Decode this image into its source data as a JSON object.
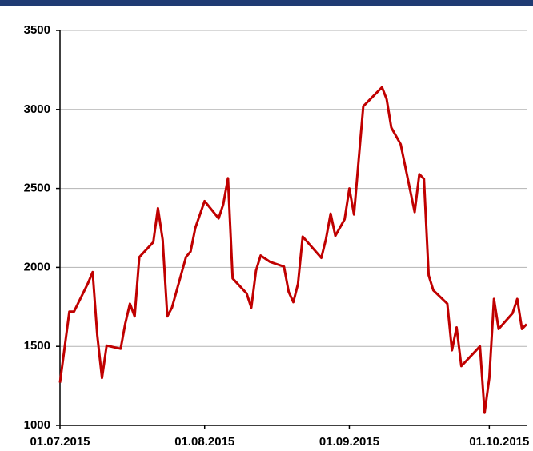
{
  "chart_data": {
    "type": "line",
    "x": [
      "01.07.2015",
      "03.07.2015",
      "04.07.2015",
      "07.07.2015",
      "08.07.2015",
      "09.07.2015",
      "10.07.2015",
      "11.07.2015",
      "14.07.2015",
      "15.07.2015",
      "16.07.2015",
      "17.07.2015",
      "18.07.2015",
      "21.07.2015",
      "22.07.2015",
      "23.07.2015",
      "24.07.2015",
      "25.07.2015",
      "28.07.2015",
      "29.07.2015",
      "30.07.2015",
      "01.08.2015",
      "04.08.2015",
      "05.08.2015",
      "06.08.2015",
      "07.08.2015",
      "10.08.2015",
      "11.08.2015",
      "12.08.2015",
      "13.08.2015",
      "15.08.2015",
      "18.08.2015",
      "19.08.2015",
      "20.08.2015",
      "21.08.2015",
      "22.08.2015",
      "26.08.2015",
      "27.08.2015",
      "28.08.2015",
      "29.08.2015",
      "31.08.2015",
      "01.09.2015",
      "02.09.2015",
      "03.09.2015",
      "04.09.2015",
      "08.09.2015",
      "09.09.2015",
      "10.09.2015",
      "12.09.2015",
      "15.09.2015",
      "16.09.2015",
      "17.09.2015",
      "18.09.2015",
      "19.09.2015",
      "22.09.2015",
      "23.09.2015",
      "24.09.2015",
      "25.09.2015",
      "29.09.2015",
      "30.09.2015",
      "01.10.2015",
      "02.10.2015",
      "03.10.2015",
      "06.10.2015",
      "07.10.2015",
      "08.10.2015",
      "09.10.2015"
    ],
    "series": [
      {
        "color": "#c00000",
        "values": [
          1270,
          1720,
          1720,
          1900,
          1970,
          1570,
          1300,
          1505,
          1485,
          1645,
          1770,
          1690,
          2065,
          2160,
          2375,
          2175,
          1690,
          1745,
          2065,
          2100,
          2250,
          2420,
          2310,
          2400,
          2565,
          1930,
          1835,
          1745,
          1980,
          2075,
          2035,
          2005,
          1845,
          1780,
          1895,
          2195,
          2060,
          2180,
          2340,
          2200,
          2305,
          2500,
          2335,
          2680,
          3020,
          3140,
          3065,
          2885,
          2780,
          2350,
          2590,
          2560,
          1950,
          1855,
          1770,
          1475,
          1620,
          1375,
          1500,
          1080,
          1300,
          1800,
          1610,
          1710,
          1800,
          1610,
          1640
        ]
      }
    ],
    "xlim": [
      "01.07.2015",
      "09.10.2015"
    ],
    "xticks": [
      "01.07.2015",
      "01.08.2015",
      "01.09.2015",
      "01.10.2015"
    ],
    "ylim": [
      1000,
      3500
    ],
    "yticks": [
      1000,
      1500,
      2000,
      2500,
      3000,
      3500
    ],
    "grid": true
  }
}
